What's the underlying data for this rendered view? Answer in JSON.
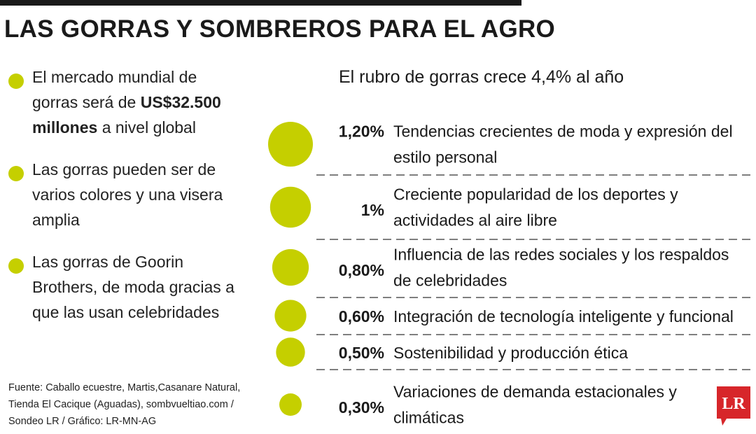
{
  "title": "LAS GORRAS Y SOMBREROS PARA EL AGRO",
  "bullets": [
    {
      "pre": "El mercado mundial de gorras será de ",
      "bold": "US$32.500 millones",
      "post": " a nivel global"
    },
    {
      "pre": "Las gorras pueden ser de varios colores y una visera amplia",
      "bold": "",
      "post": ""
    },
    {
      "pre": "Las gorras de Goorin Brothers, de moda gracias a que las usan celebridades",
      "bold": "",
      "post": ""
    }
  ],
  "source": "Fuente: Caballo ecuestre, Martis,Casanare Natural, Tienda El Cacique (Aguadas), sombvueltiao.com / Sondeo LR / Gráfico: LR-MN-AG",
  "logo_text": "LR",
  "colors": {
    "accent": "#c5cf00",
    "text": "#1a1a1a",
    "logo": "#d7262a",
    "divider": "#555555"
  },
  "chart_data": {
    "type": "bubble-list",
    "title": "El rubro de gorras crece 4,4% al año",
    "unit": "%",
    "items": [
      {
        "value": 1.2,
        "label": "1,20%",
        "text_lines": [
          "Tendencias crecientes de moda y expresión del",
          "estilo personal"
        ]
      },
      {
        "value": 1.0,
        "label": "1%",
        "text_lines": [
          "Creciente popularidad de los deportes y",
          "actividades al aire libre"
        ]
      },
      {
        "value": 0.8,
        "label": "0,80%",
        "text_lines": [
          "Influencia de las redes sociales y los respaldos",
          "de celebridades"
        ]
      },
      {
        "value": 0.6,
        "label": "0,60%",
        "text_lines": [
          "Integración de tecnología inteligente y funcional"
        ]
      },
      {
        "value": 0.5,
        "label": "0,50%",
        "text_lines": [
          "Sostenibilidad y producción ética"
        ]
      },
      {
        "value": 0.3,
        "label": "0,30%",
        "text_lines": [
          "Variaciones de demanda estacionales y",
          "climáticas"
        ]
      }
    ]
  }
}
